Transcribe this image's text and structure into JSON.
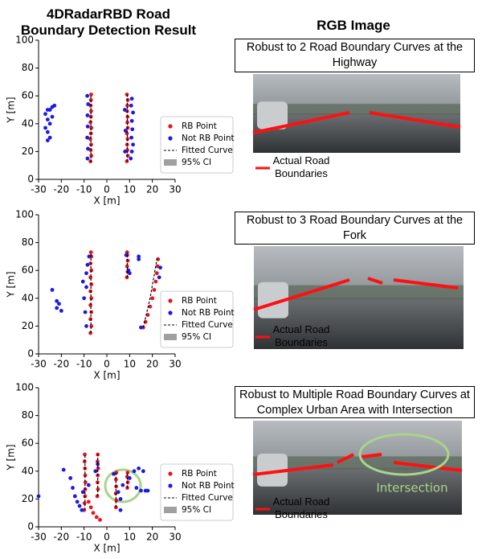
{
  "header": {
    "title_lines": [
      "4DRadarRBD Road",
      "Boundary Detection Result"
    ],
    "rgb_title": "RGB Image"
  },
  "chart_data": [
    {
      "type": "scatter",
      "xlabel": "X [m]",
      "ylabel": "Y [m]",
      "xlim": [
        -30,
        30
      ],
      "ylim": [
        0,
        100
      ],
      "xticks": [
        -30,
        -20,
        -10,
        0,
        10,
        20,
        30
      ],
      "yticks": [
        0,
        20,
        40,
        60,
        80,
        100
      ],
      "series": [
        {
          "name": "RB Point",
          "color": "#e8141b",
          "mark": "point",
          "x": [
            -7.2,
            -6.8,
            -7.1,
            -6.9,
            -7.3,
            -7,
            -6.8,
            -7.2,
            -7,
            -6.9,
            -7.1,
            -7,
            -6.9,
            8.8,
            9.2,
            9,
            8.9,
            9.1,
            8.8,
            9.2,
            9,
            9.1,
            8.9,
            9,
            9.2,
            8.8
          ],
          "values": [
            13,
            17,
            21,
            25,
            29,
            33,
            37,
            41,
            45,
            49,
            53,
            57,
            61,
            13,
            17,
            21,
            25,
            29,
            33,
            37,
            41,
            45,
            49,
            53,
            57,
            61
          ]
        },
        {
          "name": "Not RB Point",
          "color": "#1a1ae6",
          "mark": "point",
          "x": [
            -26,
            -25,
            -26,
            -27,
            -25,
            -26,
            -24,
            -27,
            -25,
            -24,
            -23,
            -26,
            -8.5,
            -8.3,
            -8.6,
            -8.4,
            -8.5,
            -8.2,
            -8.6,
            10.5,
            11,
            11.5,
            10.8,
            11.2,
            11,
            11.5,
            10.7,
            11,
            8,
            8.2,
            7.9
          ],
          "values": [
            28,
            30,
            34,
            37,
            40,
            43,
            45,
            47,
            50,
            52,
            53,
            50,
            15,
            22,
            30,
            38,
            46,
            54,
            60,
            15,
            20,
            25,
            30,
            36,
            42,
            48,
            53,
            58,
            20,
            35,
            50
          ]
        },
        {
          "name": "Fitted Curve",
          "color": "#000000",
          "mark": "dashed-line",
          "x": [
            -7,
            -7,
            null,
            9,
            9
          ],
          "values": [
            12,
            61,
            null,
            13,
            61
          ]
        },
        {
          "name": "95% CI",
          "color": "#a0a0a0",
          "mark": "band"
        }
      ]
    },
    {
      "type": "scatter",
      "xlabel": "X [m]",
      "ylabel": "Y [m]",
      "xlim": [
        -30,
        30
      ],
      "ylim": [
        0,
        100
      ],
      "xticks": [
        -30,
        -20,
        -10,
        0,
        10,
        20,
        30
      ],
      "yticks": [
        0,
        20,
        40,
        60,
        80,
        100
      ],
      "series": [
        {
          "name": "RB Point",
          "color": "#e8141b",
          "mark": "point",
          "x": [
            -7.2,
            -6.8,
            -7.2,
            -6.8,
            -7.2,
            -6.8,
            -7.2,
            -6.8,
            -7.2,
            -6.8,
            -7.2,
            -6.8,
            -7,
            8.8,
            9.1,
            8.9,
            9.2,
            9,
            8.9,
            16,
            17,
            18,
            19,
            20,
            20.8,
            21.5,
            22,
            22.3,
            22.5
          ],
          "values": [
            15,
            20,
            25,
            30,
            35,
            40,
            45,
            50,
            55,
            60,
            65,
            70,
            73,
            55,
            59,
            63,
            67,
            71,
            73,
            19,
            23,
            28,
            34,
            40,
            46,
            52,
            58,
            63,
            68
          ]
        },
        {
          "name": "Not RB Point",
          "color": "#1a1ae6",
          "mark": "point",
          "x": [
            -24,
            -22,
            -21,
            -22,
            -20,
            -9,
            -9.5,
            -10,
            -9,
            -10.5,
            -9,
            -8.5,
            -7.8,
            9.5,
            8.5,
            14,
            14,
            10,
            15,
            23,
            23.5
          ],
          "values": [
            46,
            38,
            36,
            33,
            31,
            20,
            30,
            40,
            48,
            52,
            58,
            64,
            70,
            60,
            71,
            70,
            68,
            58,
            19,
            55,
            62
          ]
        },
        {
          "name": "Fitted Curve",
          "color": "#000000",
          "mark": "dashed-line",
          "x": [
            -7,
            -7,
            null,
            9,
            9,
            null,
            16,
            19,
            22,
            22.5
          ],
          "values": [
            15,
            73,
            null,
            55,
            73,
            null,
            19,
            40,
            68,
            70
          ]
        },
        {
          "name": "95% CI",
          "color": "#a0a0a0",
          "mark": "band"
        }
      ]
    },
    {
      "type": "scatter",
      "xlabel": "X [m]",
      "ylabel": "Y [m]",
      "xlim": [
        -30,
        30
      ],
      "ylim": [
        0,
        100
      ],
      "xticks": [
        -30,
        -20,
        -10,
        0,
        10,
        20,
        30
      ],
      "yticks": [
        0,
        20,
        40,
        60,
        80,
        100
      ],
      "series": [
        {
          "name": "RB Point",
          "color": "#e8141b",
          "mark": "point",
          "x": [
            -10,
            -9.8,
            -9.6,
            -9.5,
            -9.4,
            -9.5,
            -9.6,
            -9.8,
            -9.7,
            -4.2,
            -3.9,
            -4.1,
            -4,
            -3.8,
            -4.1,
            -4,
            -8,
            -7,
            -6,
            -4.5,
            -3,
            4,
            4.2,
            3.9,
            4.1,
            4,
            4.2,
            9,
            9.2,
            8.9,
            9.1
          ],
          "values": [
            12,
            17,
            22,
            27,
            32,
            37,
            42,
            47,
            52,
            22,
            27,
            32,
            37,
            42,
            47,
            52,
            18,
            14,
            10,
            7,
            5,
            14,
            19,
            24,
            29,
            34,
            39,
            28,
            32,
            36,
            39
          ]
        },
        {
          "name": "Not RB Point",
          "color": "#1a1ae6",
          "mark": "point",
          "x": [
            -30,
            -19,
            -16,
            -15,
            -14,
            -13,
            -12,
            -11,
            -10.5,
            -8,
            -4,
            -5,
            3,
            5,
            6,
            6,
            10,
            12,
            13,
            15,
            17,
            18,
            16,
            14,
            7
          ],
          "values": [
            22,
            41,
            35,
            28,
            22,
            18,
            15,
            12,
            25,
            30,
            45,
            40,
            38,
            25,
            20,
            12,
            35,
            40,
            28,
            26,
            26,
            26,
            40,
            42,
            30
          ]
        },
        {
          "name": "Fitted Curve",
          "color": "#000000",
          "mark": "dashed-line",
          "x": [
            -9.6,
            -9.6,
            null,
            -4,
            -4,
            null,
            4,
            4,
            null,
            9,
            9
          ],
          "values": [
            12,
            52,
            null,
            22,
            52,
            null,
            14,
            39,
            null,
            28,
            39
          ]
        },
        {
          "name": "95% CI",
          "color": "#a0a0a0",
          "mark": "band"
        }
      ]
    }
  ],
  "photos": [
    {
      "caption": "Robust to 2 Road Boundary Curves at the Highway",
      "legend_label": "Actual Road Boundaries"
    },
    {
      "caption": "Robust to 3 Road Boundary Curves at the Fork",
      "legend_label": "Actual Road Boundaries"
    },
    {
      "caption": "Robust to Multiple Road Boundary Curves at Complex Urban Area with Intersection",
      "legend_label": "Actual Road Boundaries",
      "annotation": "Intersection"
    }
  ]
}
